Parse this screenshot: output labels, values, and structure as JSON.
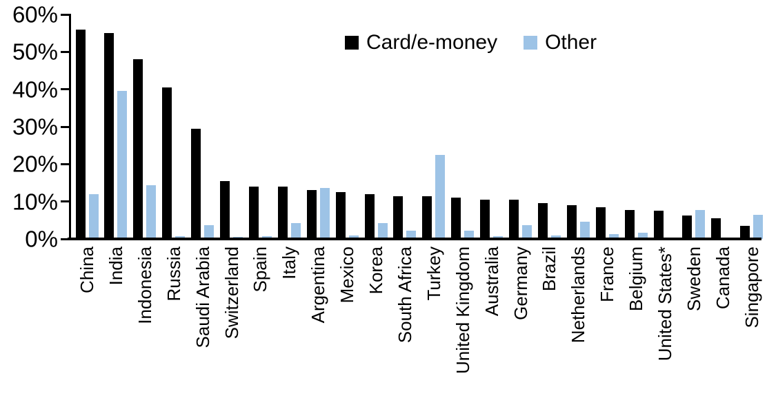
{
  "chart_data": {
    "type": "bar",
    "title": "",
    "xlabel": "",
    "ylabel": "",
    "ylim": [
      0,
      60
    ],
    "ytick_step": 10,
    "ytick_labels": [
      "0%",
      "10%",
      "20%",
      "30%",
      "40%",
      "50%",
      "60%"
    ],
    "grid": false,
    "legend_position": "top-center",
    "categories": [
      "China",
      "India",
      "Indonesia",
      "Russia",
      "Saudi Arabia",
      "Switzerland",
      "Spain",
      "Italy",
      "Argentina",
      "Mexico",
      "Korea",
      "South Africa",
      "Turkey",
      "United Kingdom",
      "Australia",
      "Germany",
      "Brazil",
      "Netherlands",
      "France",
      "Belgium",
      "United States*",
      "Sweden",
      "Canada",
      "Singapore"
    ],
    "series": [
      {
        "name": "Card/e-money",
        "color": "#000000",
        "values": [
          56,
          55,
          48,
          40.5,
          29.5,
          15.5,
          14,
          14,
          13,
          12.5,
          12,
          11.5,
          11.5,
          11,
          10.5,
          10.5,
          9.6,
          9,
          8.4,
          7.8,
          7.5,
          6.2,
          5.6,
          3.5
        ]
      },
      {
        "name": "Other",
        "color": "#9dc3e6",
        "values": [
          12,
          39.5,
          14.3,
          0.8,
          3.6,
          0.6,
          0.8,
          4.3,
          13.6,
          1,
          4.3,
          2.2,
          22.4,
          2.2,
          0.8,
          3.7,
          0.9,
          4.6,
          1.2,
          1.7,
          0.3,
          7.8,
          0,
          6.4
        ]
      }
    ]
  }
}
